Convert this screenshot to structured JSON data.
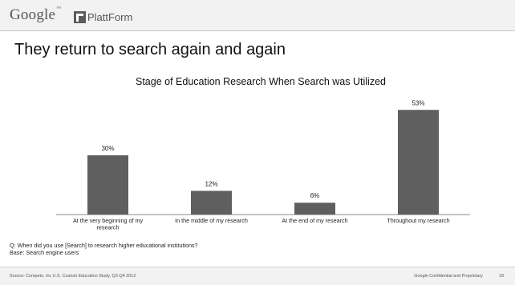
{
  "header": {
    "google_logo": "Google",
    "platform_logo": "PlattForm"
  },
  "slide_title": "They return to search again and again",
  "chart_data": {
    "type": "bar",
    "title": "Stage of Education Research When Search was Utilized",
    "categories": [
      "At the very beginning of my research",
      "In the middle of my research",
      "At the end of my research",
      "Throughout my research"
    ],
    "values": [
      30,
      12,
      6,
      53
    ],
    "data_labels": [
      "30%",
      "12%",
      "6%",
      "53%"
    ],
    "ylim": [
      0,
      60
    ],
    "grid": false,
    "bar_color": "#5f5f5f"
  },
  "notes": {
    "question": "Q: When did you use [Search] to research higher educational institutions?",
    "base": "Base: Search engine users"
  },
  "footer": {
    "source": "Source: Compete, Inc U.S. Custom Education Study, Q3-Q4 2012",
    "confidential": "Google Confidential and Proprietary",
    "page": "18"
  }
}
